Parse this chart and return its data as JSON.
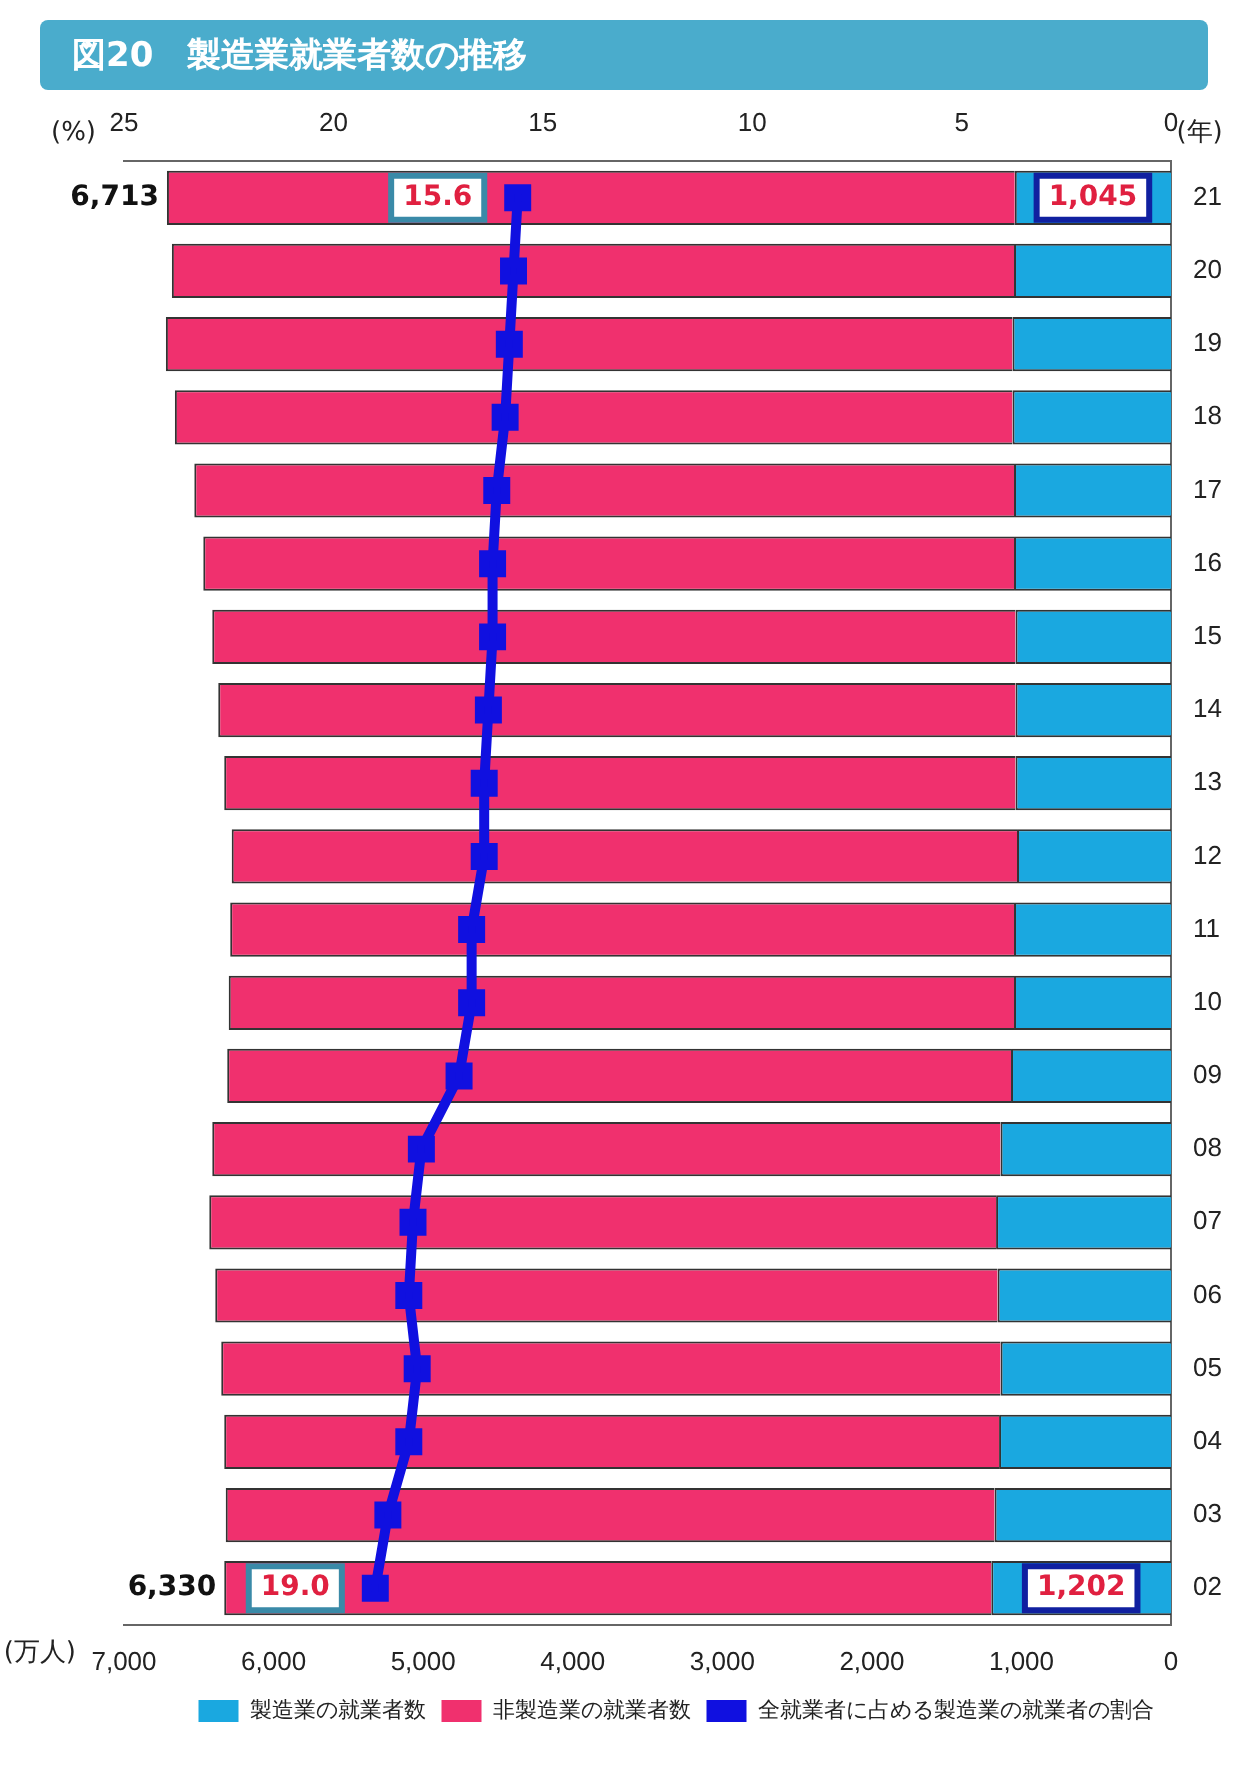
{
  "chart_data": {
    "type": "bar",
    "orientation": "horizontal",
    "title": "図20　製造業就業者数の推移",
    "xlabel": "(万人)",
    "x2label": "(%)",
    "ylabel": "(年)",
    "categories": [
      "21",
      "20",
      "19",
      "18",
      "17",
      "16",
      "15",
      "14",
      "13",
      "12",
      "11",
      "10",
      "09",
      "08",
      "07",
      "06",
      "05",
      "04",
      "03",
      "02"
    ],
    "stacked": true,
    "legend": "bottom",
    "marker": "square",
    "xlim": [
      7000,
      0
    ],
    "xticks": [
      {
        "value": 7000,
        "label": "7,000"
      },
      {
        "value": 6000,
        "label": "6,000"
      },
      {
        "value": 5000,
        "label": "5,000"
      },
      {
        "value": 4000,
        "label": "4,000"
      },
      {
        "value": 3000,
        "label": "3,000"
      },
      {
        "value": 2000,
        "label": "2,000"
      },
      {
        "value": 1000,
        "label": "1,000"
      },
      0
    ],
    "x2lim": [
      25,
      0
    ],
    "x2ticks": [
      25,
      20,
      15,
      10,
      5,
      0
    ],
    "series": [
      {
        "name": "製造業の就業者数",
        "color": "#1aa8e0",
        "values": [
          1045,
          1050,
          1060,
          1060,
          1050,
          1050,
          1040,
          1040,
          1040,
          1030,
          1050,
          1050,
          1070,
          1140,
          1170,
          1160,
          1140,
          1150,
          1180,
          1202
        ],
        "value_labels": [
          "1,045",
          null,
          null,
          null,
          null,
          null,
          null,
          null,
          null,
          null,
          null,
          null,
          null,
          null,
          null,
          null,
          null,
          null,
          null,
          "1,202"
        ]
      },
      {
        "name": "非製造業の就業者数",
        "color": "#f0306e",
        "values": [
          5668,
          5630,
          5660,
          5600,
          5480,
          5420,
          5370,
          5330,
          5290,
          5250,
          5240,
          5250,
          5240,
          5270,
          5260,
          5230,
          5210,
          5180,
          5140,
          5128
        ]
      },
      {
        "name": "全就業者に占める製造業の就業者の割合",
        "type": "line",
        "axis": "x2",
        "color": "#1010e0",
        "values": [
          15.6,
          15.7,
          15.8,
          15.9,
          16.1,
          16.2,
          16.2,
          16.3,
          16.4,
          16.4,
          16.7,
          16.7,
          17.0,
          17.9,
          18.1,
          18.2,
          18.0,
          18.2,
          18.7,
          19.0
        ],
        "value_labels": [
          "15.6",
          null,
          null,
          null,
          null,
          null,
          null,
          null,
          null,
          null,
          null,
          null,
          null,
          null,
          null,
          null,
          null,
          null,
          null,
          "19.0"
        ]
      }
    ],
    "totals": [
      "6,713",
      null,
      null,
      null,
      null,
      null,
      null,
      null,
      null,
      null,
      null,
      null,
      null,
      null,
      null,
      null,
      null,
      null,
      null,
      "6,330"
    ]
  }
}
